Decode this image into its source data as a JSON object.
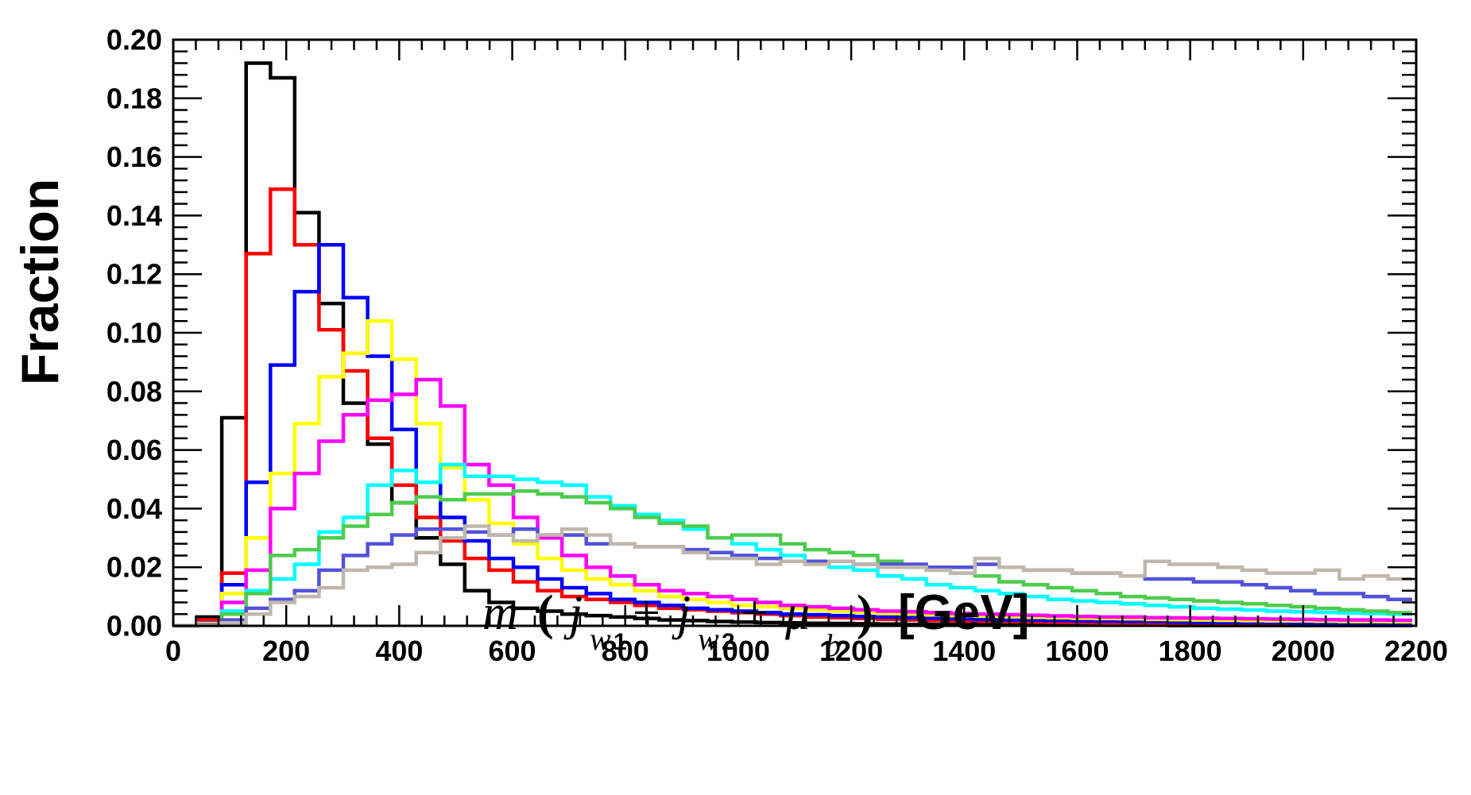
{
  "chart_data": {
    "type": "line",
    "style": "step-histogram",
    "title": "",
    "ylabel": "Fraction",
    "xlabel": {
      "m": "m",
      "open": "(",
      "j1": "j",
      "sub1_w": "w",
      "sub1_n": "1",
      "plus1": "+",
      "j2": "j",
      "sub2_w": "w",
      "sub2_n": "2",
      "plus2": "+",
      "mu": "μ",
      "sub3": "b",
      "close": ")",
      "unit": "[GeV]"
    },
    "xlim": [
      0,
      2200
    ],
    "ylim": [
      0,
      0.2
    ],
    "x_ticks": [
      0,
      200,
      400,
      600,
      800,
      1000,
      1200,
      1400,
      1600,
      1800,
      2000,
      2200
    ],
    "x_tick_labels": [
      "0",
      "200",
      "400",
      "600",
      "800",
      "1000",
      "1200",
      "1400",
      "1600",
      "1800",
      "2000",
      "2200"
    ],
    "y_ticks": [
      0,
      0.02,
      0.04,
      0.06,
      0.08,
      0.1,
      0.12,
      0.14,
      0.16,
      0.18,
      0.2
    ],
    "y_tick_labels": [
      "0.00",
      "0.02",
      "0.04",
      "0.06",
      "0.08",
      "0.10",
      "0.12",
      "0.14",
      "0.16",
      "0.18",
      "0.20"
    ],
    "grid": false,
    "legend": "none",
    "bin_width": 43,
    "bin_start": 0,
    "series": [
      {
        "name": "black",
        "color": "#000000",
        "values": [
          0.0,
          0.003,
          0.071,
          0.192,
          0.187,
          0.141,
          0.11,
          0.076,
          0.062,
          0.042,
          0.03,
          0.021,
          0.012,
          0.008,
          0.006,
          0.005,
          0.004,
          0.0035,
          0.003,
          0.0025,
          0.002,
          0.0018,
          0.0015,
          0.0013,
          0.0011,
          0.001,
          0.0009,
          0.0008,
          0.0007,
          0.0006,
          0.0005,
          0.0005,
          0.0004,
          0.0004,
          0.0003,
          0.0003,
          0.0003,
          0.0002,
          0.0002,
          0.0002,
          0.0002,
          0.0001,
          0.0001,
          0.0001,
          0.0001,
          0.0001,
          0.0001,
          0.0001,
          0.0001,
          0.0001,
          0.0001
        ]
      },
      {
        "name": "red",
        "color": "#ff0000",
        "values": [
          0.0,
          0.002,
          0.018,
          0.127,
          0.149,
          0.13,
          0.101,
          0.087,
          0.064,
          0.048,
          0.037,
          0.029,
          0.023,
          0.019,
          0.015,
          0.012,
          0.01,
          0.009,
          0.008,
          0.007,
          0.006,
          0.0055,
          0.005,
          0.0045,
          0.004,
          0.0035,
          0.003,
          0.0028,
          0.0025,
          0.0022,
          0.002,
          0.0018,
          0.0016,
          0.0015,
          0.0014,
          0.0013,
          0.0012,
          0.0011,
          0.001,
          0.001,
          0.0009,
          0.0009,
          0.0008,
          0.0008,
          0.0007,
          0.0007,
          0.0006,
          0.0006,
          0.0006,
          0.0005,
          0.0005
        ]
      },
      {
        "name": "blue",
        "color": "#0000ff",
        "values": [
          0.0,
          0.001,
          0.014,
          0.049,
          0.089,
          0.114,
          0.13,
          0.112,
          0.092,
          0.067,
          0.049,
          0.037,
          0.029,
          0.023,
          0.02,
          0.016,
          0.013,
          0.011,
          0.009,
          0.008,
          0.007,
          0.006,
          0.0055,
          0.005,
          0.0045,
          0.004,
          0.0038,
          0.0035,
          0.0032,
          0.003,
          0.0028,
          0.0026,
          0.0024,
          0.0022,
          0.002,
          0.0019,
          0.0018,
          0.0017,
          0.0016,
          0.0015,
          0.0014,
          0.0013,
          0.0012,
          0.0012,
          0.0011,
          0.0011,
          0.001,
          0.001,
          0.0009,
          0.0009,
          0.0009
        ]
      },
      {
        "name": "yellow",
        "color": "#ffff00",
        "values": [
          0.0,
          0.0008,
          0.011,
          0.03,
          0.052,
          0.069,
          0.085,
          0.093,
          0.104,
          0.091,
          0.069,
          0.054,
          0.043,
          0.035,
          0.028,
          0.023,
          0.019,
          0.016,
          0.014,
          0.012,
          0.01,
          0.009,
          0.008,
          0.007,
          0.0065,
          0.006,
          0.0055,
          0.005,
          0.0046,
          0.0042,
          0.004,
          0.0037,
          0.0035,
          0.0033,
          0.0031,
          0.0029,
          0.0028,
          0.0026,
          0.0025,
          0.0024,
          0.0022,
          0.0021,
          0.002,
          0.0019,
          0.0018,
          0.0017,
          0.0017,
          0.0016,
          0.0015,
          0.0015,
          0.0014
        ]
      },
      {
        "name": "magenta",
        "color": "#ff00ff",
        "values": [
          0.0,
          0.0005,
          0.008,
          0.019,
          0.04,
          0.052,
          0.063,
          0.072,
          0.077,
          0.079,
          0.084,
          0.075,
          0.055,
          0.048,
          0.037,
          0.03,
          0.024,
          0.02,
          0.017,
          0.014,
          0.012,
          0.011,
          0.01,
          0.009,
          0.008,
          0.007,
          0.0065,
          0.006,
          0.0055,
          0.005,
          0.0048,
          0.0045,
          0.0042,
          0.004,
          0.0038,
          0.0036,
          0.0034,
          0.0032,
          0.003,
          0.003,
          0.0028,
          0.0027,
          0.0026,
          0.0025,
          0.0024,
          0.0023,
          0.0022,
          0.0021,
          0.002,
          0.002,
          0.0019
        ]
      },
      {
        "name": "cyan",
        "color": "#00ffff",
        "values": [
          0.0,
          0.0003,
          0.005,
          0.012,
          0.016,
          0.021,
          0.032,
          0.037,
          0.048,
          0.053,
          0.049,
          0.055,
          0.051,
          0.051,
          0.05,
          0.049,
          0.048,
          0.044,
          0.041,
          0.038,
          0.036,
          0.033,
          0.03,
          0.028,
          0.026,
          0.024,
          0.022,
          0.02,
          0.019,
          0.017,
          0.016,
          0.014,
          0.013,
          0.012,
          0.011,
          0.01,
          0.009,
          0.0085,
          0.008,
          0.0075,
          0.007,
          0.0065,
          0.006,
          0.0057,
          0.0054,
          0.005,
          0.0048,
          0.0046,
          0.0044,
          0.0042,
          0.004
        ]
      },
      {
        "name": "green",
        "color": "#4dcc4d",
        "values": [
          0.0,
          0.0002,
          0.004,
          0.011,
          0.024,
          0.026,
          0.03,
          0.034,
          0.038,
          0.042,
          0.044,
          0.043,
          0.045,
          0.045,
          0.046,
          0.045,
          0.044,
          0.042,
          0.04,
          0.037,
          0.035,
          0.034,
          0.03,
          0.031,
          0.031,
          0.028,
          0.026,
          0.025,
          0.024,
          0.022,
          0.02,
          0.019,
          0.018,
          0.017,
          0.015,
          0.014,
          0.013,
          0.012,
          0.011,
          0.01,
          0.0095,
          0.009,
          0.0085,
          0.008,
          0.0075,
          0.007,
          0.0065,
          0.006,
          0.0055,
          0.005,
          0.0045
        ]
      },
      {
        "name": "slate-blue",
        "color": "#5252d9",
        "values": [
          0.0,
          0.0002,
          0.002,
          0.006,
          0.009,
          0.012,
          0.019,
          0.024,
          0.028,
          0.031,
          0.033,
          0.033,
          0.032,
          0.031,
          0.033,
          0.031,
          0.031,
          0.028,
          0.028,
          0.027,
          0.027,
          0.026,
          0.025,
          0.024,
          0.023,
          0.022,
          0.022,
          0.022,
          0.021,
          0.021,
          0.021,
          0.02,
          0.02,
          0.021,
          0.02,
          0.019,
          0.019,
          0.018,
          0.018,
          0.017,
          0.016,
          0.016,
          0.015,
          0.015,
          0.014,
          0.013,
          0.012,
          0.011,
          0.011,
          0.01,
          0.009
        ]
      },
      {
        "name": "gray",
        "color": "#bfb7ad",
        "values": [
          0.0,
          0.0001,
          0.001,
          0.004,
          0.008,
          0.01,
          0.013,
          0.019,
          0.02,
          0.021,
          0.025,
          0.03,
          0.034,
          0.031,
          0.029,
          0.031,
          0.033,
          0.031,
          0.028,
          0.027,
          0.027,
          0.025,
          0.023,
          0.023,
          0.021,
          0.022,
          0.021,
          0.022,
          0.021,
          0.02,
          0.02,
          0.019,
          0.018,
          0.023,
          0.02,
          0.019,
          0.019,
          0.018,
          0.018,
          0.017,
          0.022,
          0.021,
          0.021,
          0.02,
          0.019,
          0.018,
          0.018,
          0.019,
          0.016,
          0.017,
          0.016
        ]
      }
    ]
  }
}
